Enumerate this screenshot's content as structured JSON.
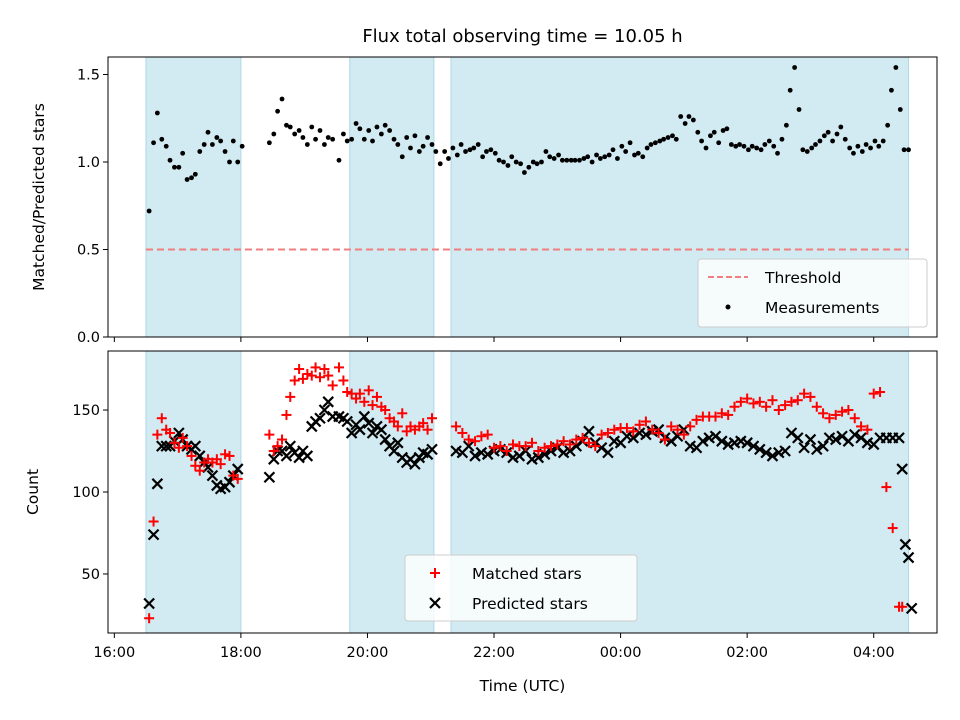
{
  "chart_data": [
    {
      "type": "scatter",
      "title": "Flux total observing time = 10.05 h",
      "ylabel": "Matched/Predicted stars",
      "xlabel": "",
      "ylim": [
        0,
        1.6
      ],
      "yticks": [
        0,
        0.5,
        1.0,
        1.5
      ],
      "ytick_labels": [
        "0.0",
        "0.5",
        "1.0",
        "1.5"
      ],
      "legend_placement": "lower-right",
      "threshold": {
        "name": "Threshold",
        "value": 0.5,
        "color": "#f08080"
      },
      "shaded_intervals_hours_after_1600": [
        [
          0.5,
          2.0
        ],
        [
          3.72,
          5.05
        ],
        [
          5.32,
          12.55
        ]
      ],
      "shade_color": "#add8e6",
      "series": [
        {
          "name": "Measurements",
          "color": "#000000",
          "marker": "dot",
          "x_hours_after_1600": [
            0.55,
            0.62,
            0.68,
            0.75,
            0.82,
            0.88,
            0.95,
            1.02,
            1.08,
            1.15,
            1.22,
            1.28,
            1.35,
            1.42,
            1.48,
            1.55,
            1.62,
            1.68,
            1.75,
            1.82,
            1.88,
            1.95,
            2.02,
            2.45,
            2.52,
            2.58,
            2.65,
            2.72,
            2.78,
            2.85,
            2.92,
            2.98,
            3.05,
            3.12,
            3.18,
            3.25,
            3.32,
            3.38,
            3.45,
            3.55,
            3.62,
            3.68,
            3.75,
            3.82,
            3.88,
            3.95,
            4.02,
            4.08,
            4.15,
            4.22,
            4.28,
            4.35,
            4.42,
            4.48,
            4.55,
            4.62,
            4.68,
            4.75,
            4.82,
            4.88,
            4.95,
            5.02,
            5.08,
            5.15,
            5.22,
            5.28,
            5.35,
            5.42,
            5.48,
            5.55,
            5.62,
            5.68,
            5.75,
            5.82,
            5.88,
            5.95,
            6.02,
            6.08,
            6.15,
            6.22,
            6.28,
            6.35,
            6.42,
            6.48,
            6.55,
            6.62,
            6.68,
            6.75,
            6.82,
            6.88,
            6.95,
            7.02,
            7.08,
            7.15,
            7.22,
            7.28,
            7.35,
            7.42,
            7.48,
            7.55,
            7.62,
            7.68,
            7.75,
            7.82,
            7.88,
            7.95,
            8.02,
            8.08,
            8.15,
            8.22,
            8.28,
            8.35,
            8.42,
            8.48,
            8.55,
            8.62,
            8.68,
            8.75,
            8.82,
            8.88,
            8.95,
            9.02,
            9.08,
            9.15,
            9.22,
            9.28,
            9.35,
            9.42,
            9.48,
            9.55,
            9.62,
            9.68,
            9.75,
            9.82,
            9.88,
            9.95,
            10.02,
            10.08,
            10.15,
            10.22,
            10.28,
            10.35,
            10.42,
            10.48,
            10.55,
            10.62,
            10.68,
            10.75,
            10.82,
            10.88,
            10.95,
            11.02,
            11.08,
            11.15,
            11.22,
            11.28,
            11.35,
            11.42,
            11.48,
            11.55,
            11.62,
            11.68,
            11.75,
            11.82,
            11.88,
            11.95,
            12.02,
            12.08,
            12.15,
            12.22,
            12.28,
            12.35,
            12.42,
            12.48,
            12.55,
            12.62
          ],
          "values": [
            0.72,
            1.11,
            1.28,
            1.13,
            1.09,
            1.01,
            0.97,
            0.97,
            1.05,
            0.9,
            0.91,
            0.93,
            1.06,
            1.1,
            1.17,
            1.1,
            1.14,
            1.12,
            1.06,
            1.0,
            1.12,
            1.0,
            1.09,
            1.11,
            1.16,
            1.29,
            1.36,
            1.21,
            1.2,
            1.16,
            1.18,
            1.14,
            1.1,
            1.2,
            1.13,
            1.18,
            1.1,
            1.14,
            1.13,
            1.01,
            1.16,
            1.12,
            1.13,
            1.22,
            1.19,
            1.13,
            1.18,
            1.12,
            1.2,
            1.16,
            1.21,
            1.18,
            1.13,
            1.1,
            1.03,
            1.14,
            1.08,
            1.15,
            1.06,
            1.09,
            1.14,
            1.1,
            1.06,
            0.99,
            1.06,
            1.02,
            1.08,
            1.04,
            1.1,
            1.06,
            1.07,
            1.08,
            1.1,
            1.03,
            1.06,
            1.07,
            1.05,
            1.01,
            1.0,
            0.98,
            1.03,
            1.0,
            0.99,
            0.94,
            0.97,
            1.0,
            0.99,
            1.0,
            1.06,
            1.03,
            1.02,
            1.04,
            1.01,
            1.01,
            1.01,
            1.01,
            1.01,
            1.02,
            1.03,
            1.0,
            1.04,
            1.02,
            1.03,
            1.04,
            1.07,
            1.02,
            1.09,
            1.06,
            1.11,
            1.04,
            1.05,
            1.03,
            1.08,
            1.1,
            1.11,
            1.12,
            1.13,
            1.14,
            1.15,
            1.13,
            1.26,
            1.22,
            1.26,
            1.24,
            1.17,
            1.12,
            1.08,
            1.15,
            1.17,
            1.11,
            1.18,
            1.19,
            1.1,
            1.09,
            1.1,
            1.09,
            1.07,
            1.09,
            1.08,
            1.07,
            1.1,
            1.12,
            1.09,
            1.05,
            1.13,
            1.21,
            1.41,
            1.54,
            1.3,
            1.07,
            1.06,
            1.08,
            1.1,
            1.12,
            1.15,
            1.17,
            1.12,
            1.16,
            1.2,
            1.13,
            1.08,
            1.05,
            1.09,
            1.06,
            1.1,
            1.08,
            1.12,
            1.09,
            1.12,
            1.21,
            1.41,
            1.54,
            1.3,
            1.07,
            1.07
          ]
        }
      ]
    },
    {
      "type": "scatter",
      "title": "",
      "ylabel": "Count",
      "xlabel": "Time (UTC)",
      "ylim": [
        14,
        186
      ],
      "yticks": [
        50,
        100,
        150
      ],
      "ytick_labels": [
        "50",
        "100",
        "150"
      ],
      "xticks_hours_after_1600": [
        0,
        2,
        4,
        6,
        8,
        10,
        12
      ],
      "xtick_labels": [
        "16:00",
        "18:00",
        "20:00",
        "22:00",
        "00:00",
        "02:00",
        "04:00"
      ],
      "legend_placement": "lower-center",
      "shaded_intervals_hours_after_1600": [
        [
          0.5,
          2.0
        ],
        [
          3.72,
          5.05
        ],
        [
          5.32,
          12.55
        ]
      ],
      "shade_color": "#add8e6",
      "series": [
        {
          "name": "Matched stars",
          "color": "#ff0000",
          "marker": "plus",
          "x_hours_after_1600": [
            0.55,
            0.62,
            0.68,
            0.75,
            0.82,
            0.88,
            0.95,
            1.02,
            1.08,
            1.15,
            1.22,
            1.28,
            1.35,
            1.42,
            1.48,
            1.55,
            1.62,
            1.68,
            1.75,
            1.82,
            1.88,
            1.95,
            2.45,
            2.52,
            2.58,
            2.65,
            2.72,
            2.78,
            2.85,
            2.92,
            2.98,
            3.05,
            3.12,
            3.18,
            3.25,
            3.32,
            3.38,
            3.45,
            3.55,
            3.62,
            3.68,
            3.75,
            3.82,
            3.88,
            3.95,
            4.02,
            4.08,
            4.15,
            4.22,
            4.28,
            4.35,
            4.42,
            4.48,
            4.55,
            4.62,
            4.68,
            4.75,
            4.82,
            4.88,
            4.95,
            5.02,
            5.4,
            5.5,
            5.6,
            5.7,
            5.8,
            5.9,
            6.0,
            6.1,
            6.2,
            6.3,
            6.4,
            6.5,
            6.6,
            6.7,
            6.8,
            6.9,
            7.0,
            7.1,
            7.2,
            7.3,
            7.4,
            7.5,
            7.6,
            7.7,
            7.8,
            7.9,
            8.0,
            8.1,
            8.2,
            8.3,
            8.4,
            8.5,
            8.6,
            8.7,
            8.8,
            8.9,
            9.0,
            9.1,
            9.2,
            9.3,
            9.4,
            9.5,
            9.6,
            9.7,
            9.8,
            9.9,
            10.0,
            10.1,
            10.2,
            10.3,
            10.4,
            10.5,
            10.6,
            10.7,
            10.8,
            10.9,
            11.0,
            11.1,
            11.2,
            11.3,
            11.4,
            11.5,
            11.6,
            11.7,
            11.8,
            11.9,
            12.0,
            12.1,
            12.2,
            12.3,
            12.4,
            12.45,
            12.5,
            12.55,
            12.6
          ],
          "values": [
            23,
            82,
            135,
            145,
            138,
            136,
            130,
            127,
            133,
            128,
            122,
            116,
            113,
            118,
            120,
            118,
            120,
            117,
            123,
            122,
            110,
            108,
            135,
            125,
            128,
            132,
            147,
            158,
            168,
            175,
            169,
            172,
            171,
            176,
            170,
            175,
            171,
            165,
            176,
            168,
            161,
            160,
            157,
            160,
            155,
            162,
            153,
            158,
            152,
            150,
            145,
            143,
            140,
            148,
            137,
            140,
            138,
            140,
            142,
            138,
            145,
            140,
            136,
            132,
            131,
            134,
            135,
            127,
            128,
            125,
            129,
            128,
            128,
            130,
            125,
            127,
            128,
            129,
            131,
            129,
            132,
            133,
            130,
            128,
            135,
            136,
            138,
            139,
            139,
            137,
            141,
            143,
            138,
            136,
            132,
            140,
            138,
            135,
            140,
            144,
            146,
            146,
            146,
            148,
            147,
            152,
            155,
            157,
            154,
            155,
            152,
            156,
            150,
            153,
            155,
            156,
            160,
            158,
            152,
            148,
            145,
            147,
            149,
            150,
            145,
            140,
            138,
            160,
            161,
            103,
            78,
            30,
            30
          ]
        },
        {
          "name": "Predicted stars",
          "color": "#000000",
          "marker": "x",
          "x_hours_after_1600": [
            0.55,
            0.62,
            0.68,
            0.75,
            0.82,
            0.88,
            0.95,
            1.02,
            1.08,
            1.15,
            1.22,
            1.28,
            1.35,
            1.42,
            1.48,
            1.55,
            1.62,
            1.68,
            1.75,
            1.82,
            1.88,
            1.95,
            2.45,
            2.52,
            2.58,
            2.65,
            2.72,
            2.78,
            2.85,
            2.92,
            2.98,
            3.05,
            3.12,
            3.18,
            3.25,
            3.32,
            3.38,
            3.45,
            3.55,
            3.62,
            3.68,
            3.75,
            3.82,
            3.88,
            3.95,
            4.02,
            4.08,
            4.15,
            4.22,
            4.28,
            4.35,
            4.42,
            4.48,
            4.55,
            4.62,
            4.68,
            4.75,
            4.82,
            4.88,
            4.95,
            5.02,
            5.4,
            5.5,
            5.6,
            5.7,
            5.8,
            5.9,
            6.0,
            6.1,
            6.2,
            6.3,
            6.4,
            6.5,
            6.6,
            6.7,
            6.8,
            6.9,
            7.0,
            7.1,
            7.2,
            7.3,
            7.4,
            7.5,
            7.6,
            7.7,
            7.8,
            7.9,
            8.0,
            8.1,
            8.2,
            8.3,
            8.4,
            8.5,
            8.6,
            8.7,
            8.8,
            8.9,
            9.0,
            9.1,
            9.2,
            9.3,
            9.4,
            9.5,
            9.6,
            9.7,
            9.8,
            9.9,
            10.0,
            10.1,
            10.2,
            10.3,
            10.4,
            10.5,
            10.6,
            10.7,
            10.8,
            10.9,
            11.0,
            11.1,
            11.2,
            11.3,
            11.4,
            11.5,
            11.6,
            11.7,
            11.8,
            11.9,
            12.0,
            12.1,
            12.2,
            12.3,
            12.4,
            12.45,
            12.5,
            12.55,
            12.6
          ],
          "values": [
            32,
            74,
            105,
            128,
            128,
            128,
            131,
            136,
            132,
            128,
            126,
            128,
            122,
            118,
            115,
            110,
            104,
            102,
            103,
            106,
            110,
            114,
            109,
            120,
            125,
            125,
            122,
            128,
            124,
            121,
            125,
            122,
            140,
            143,
            145,
            150,
            155,
            146,
            146,
            145,
            143,
            136,
            141,
            138,
            146,
            142,
            136,
            140,
            138,
            132,
            128,
            125,
            130,
            121,
            118,
            120,
            117,
            121,
            124,
            123,
            126,
            125,
            124,
            128,
            122,
            124,
            123,
            125,
            126,
            124,
            121,
            122,
            125,
            120,
            121,
            123,
            125,
            127,
            124,
            125,
            128,
            131,
            137,
            130,
            127,
            124,
            131,
            130,
            134,
            133,
            136,
            135,
            137,
            138,
            133,
            131,
            134,
            138,
            128,
            127,
            131,
            133,
            134,
            131,
            129,
            130,
            131,
            130,
            128,
            126,
            124,
            122,
            124,
            125,
            136,
            133,
            127,
            132,
            126,
            128,
            133,
            132,
            134,
            131,
            135,
            133,
            130,
            129,
            133,
            133,
            133,
            133,
            114,
            68,
            60,
            29,
            29
          ]
        }
      ]
    }
  ]
}
